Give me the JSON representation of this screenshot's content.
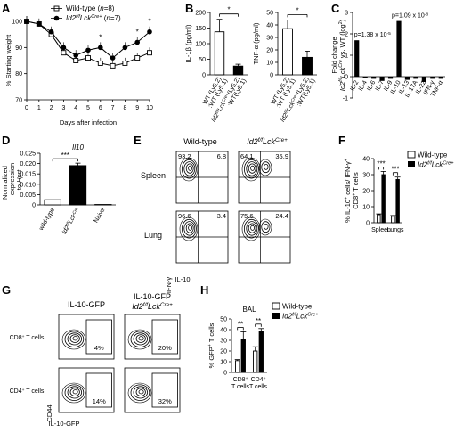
{
  "panels": {
    "A": {
      "label": "A"
    },
    "B": {
      "label": "B"
    },
    "C": {
      "label": "C"
    },
    "D": {
      "label": "D"
    },
    "E": {
      "label": "E"
    },
    "F": {
      "label": "F"
    },
    "G": {
      "label": "G"
    },
    "H": {
      "label": "H"
    }
  },
  "chart_data": [
    {
      "id": "A",
      "type": "line",
      "ylabel": "% Starting weight",
      "xlabel": "Days after infection",
      "xlim": [
        0,
        10
      ],
      "ylim": [
        70,
        100
      ],
      "yticks": [
        70,
        80,
        90,
        100
      ],
      "xticks": [
        0,
        1,
        2,
        3,
        4,
        5,
        6,
        7,
        8,
        9,
        10
      ],
      "legend": "top-right",
      "series": [
        {
          "name": "Wild-type (n=8)",
          "marker": "open-square",
          "x": [
            0,
            1,
            2,
            3,
            4,
            5,
            6,
            7,
            8,
            9,
            10
          ],
          "values": [
            100,
            99,
            95,
            88,
            85,
            86,
            84,
            83,
            84,
            86,
            88
          ]
        },
        {
          "name": "Id2f/fLckCre+ (n=7)",
          "marker": "filled-circle",
          "x": [
            0,
            1,
            2,
            3,
            4,
            5,
            6,
            7,
            8,
            9,
            10
          ],
          "values": [
            100,
            99,
            96,
            90,
            87,
            89,
            90,
            86,
            90,
            92,
            96
          ]
        }
      ],
      "significance": [
        {
          "x": 6,
          "label": "*"
        },
        {
          "x": 9,
          "label": "*"
        },
        {
          "x": 10,
          "label": "*"
        }
      ]
    },
    {
      "id": "B1",
      "type": "bar",
      "ylabel": "IL-1β (pg/ml)",
      "ylim": [
        0,
        200
      ],
      "yticks": [
        0,
        50,
        100,
        150,
        200
      ],
      "categories": [
        "WT (Ly5.2) :WT (Ly5.1)",
        "Id2f/fLckCre+(Ly5.2) :WT(Ly5.1)"
      ],
      "values": [
        138,
        28
      ],
      "errors": [
        40,
        6
      ],
      "fills": [
        "#ffffff",
        "#000000"
      ],
      "significance": "*"
    },
    {
      "id": "B2",
      "type": "bar",
      "ylabel": "TNF-α (pg/ml)",
      "ylim": [
        0,
        50
      ],
      "yticks": [
        0,
        10,
        20,
        30,
        40,
        50
      ],
      "categories": [
        "WT (Ly5.2) :WT (Ly5.1)",
        "Id2f/fLckCre+(Ly5.2) :WT(Ly5.1)"
      ],
      "values": [
        37,
        14
      ],
      "errors": [
        7,
        5
      ],
      "fills": [
        "#ffffff",
        "#000000"
      ],
      "significance": "*"
    },
    {
      "id": "C",
      "type": "bar",
      "ylabel": "Fold change Id2f/fLckCre+ vs. WT (log2)",
      "ylim": [
        -1,
        3
      ],
      "yticks": [
        -1,
        0,
        1,
        2,
        3
      ],
      "categories": [
        "IL-2",
        "IL-4",
        "IL-6",
        "IL-7",
        "IL-9",
        "IL-10",
        "IL-13",
        "IL-17A",
        "IL-22",
        "IFN-γ",
        "TNF-α"
      ],
      "values": [
        1.7,
        -0.05,
        -0.1,
        -0.2,
        -0.1,
        2.6,
        -0.15,
        -0.1,
        -0.25,
        -0.1,
        -0.1
      ],
      "annotations": [
        {
          "category": "IL-2",
          "text": "p=1.38 x 10-5"
        },
        {
          "category": "IL-10",
          "text": "p=1.09 x 10-8"
        }
      ]
    },
    {
      "id": "D",
      "type": "bar",
      "title": "Il10",
      "ylabel": "Normalized expression to Hprt",
      "ylim": [
        0,
        0.025
      ],
      "yticks": [
        "0",
        "0.005",
        "0.010",
        "0.015",
        "0.020",
        "0.025"
      ],
      "categories": [
        "wild-type",
        "Id2f/fLckCre+",
        "Naive"
      ],
      "values": [
        0.0025,
        0.019,
        0.0002
      ],
      "errors": [
        0,
        0.0012,
        0
      ],
      "fills": [
        "#ffffff",
        "#000000",
        "#ffffff"
      ],
      "significance": "***"
    },
    {
      "id": "E",
      "type": "table",
      "columns": [
        "Wild-type",
        "Id2f/fLckCre+"
      ],
      "rows": [
        "Spleen",
        "Lung"
      ],
      "xlabel": "IL-10",
      "ylabel": "IFN-γ",
      "quadrants": [
        {
          "row": "Spleen",
          "col": "Wild-type",
          "upper_left": "93.2",
          "upper_right": "6.8"
        },
        {
          "row": "Spleen",
          "col": "Id2f/fLckCre+",
          "upper_left": "64.1",
          "upper_right": "35.9"
        },
        {
          "row": "Lung",
          "col": "Wild-type",
          "upper_left": "96.6",
          "upper_right": "3.4"
        },
        {
          "row": "Lung",
          "col": "Id2f/fLckCre+",
          "upper_left": "75.6",
          "upper_right": "24.4"
        }
      ]
    },
    {
      "id": "F",
      "type": "bar",
      "ylabel": "% IL-10+ cells/ IFN-γ+ CD8+ T cells",
      "ylim": [
        0,
        40
      ],
      "yticks": [
        0,
        10,
        20,
        30,
        40
      ],
      "categories": [
        "Spleen",
        "Lungs"
      ],
      "legend": "top-right",
      "series": [
        {
          "name": "Wild-type",
          "values": [
            5,
            4
          ],
          "errors": [
            0.5,
            0.5
          ],
          "fill": "#ffffff"
        },
        {
          "name": "Id2f/fLckCre+",
          "values": [
            30,
            27
          ],
          "errors": [
            2,
            1.5
          ],
          "fill": "#000000"
        }
      ],
      "significance": [
        "***",
        "***"
      ]
    },
    {
      "id": "G",
      "type": "table",
      "columns": [
        "IL-10-GFP",
        "IL-10-GFP Id2f/fLckCre+"
      ],
      "rows": [
        "CD8+ T cells",
        "CD4+ T cells"
      ],
      "xlabel": "IL-10-GFP",
      "ylabel": "CD44",
      "gates": [
        {
          "row": "CD8+ T cells",
          "col": "IL-10-GFP",
          "value": "4%"
        },
        {
          "row": "CD8+ T cells",
          "col": "IL-10-GFP Id2f/fLckCre+",
          "value": "20%"
        },
        {
          "row": "CD4+ T cells",
          "col": "IL-10-GFP",
          "value": "14%"
        },
        {
          "row": "CD4+ T cells",
          "col": "IL-10-GFP Id2f/fLckCre+",
          "value": "32%"
        }
      ]
    },
    {
      "id": "H",
      "type": "bar",
      "title": "BAL",
      "ylabel": "% GFP+ T cells",
      "ylim": [
        0,
        50
      ],
      "yticks": [
        0,
        10,
        20,
        30,
        40,
        50
      ],
      "categories": [
        "CD8+ T cells",
        "CD4+ T cells"
      ],
      "legend": "top-right",
      "series": [
        {
          "name": "Wild-type",
          "values": [
            11,
            20
          ],
          "errors": [
            1,
            4
          ],
          "fill": "#ffffff"
        },
        {
          "name": "Id2f/fLckCre+",
          "values": [
            31,
            38
          ],
          "errors": [
            7,
            3
          ],
          "fill": "#000000"
        }
      ],
      "significance": [
        "**",
        "**"
      ]
    }
  ]
}
